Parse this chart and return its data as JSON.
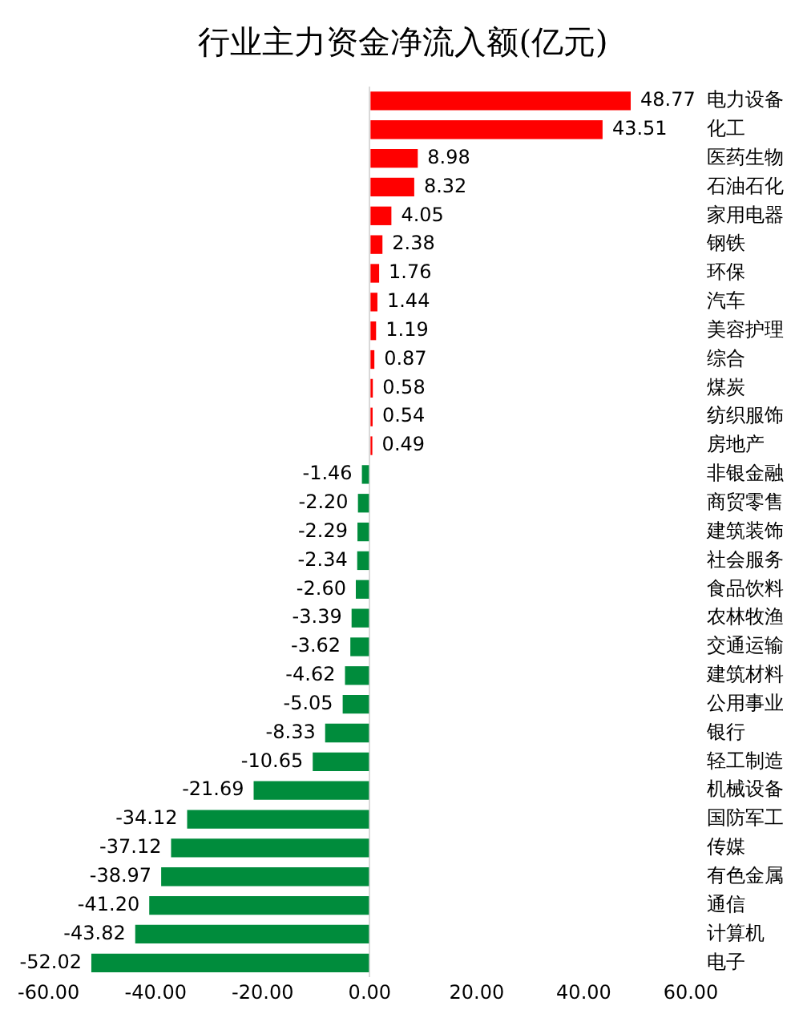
{
  "chart_data": {
    "type": "bar",
    "orientation": "horizontal",
    "title": "行业主力资金净流入额(亿元)",
    "categories": [
      "电力设备",
      "化工",
      "医药生物",
      "石油石化",
      "家用电器",
      "钢铁",
      "环保",
      "汽车",
      "美容护理",
      "综合",
      "煤炭",
      "纺织服饰",
      "房地产",
      "非银金融",
      "商贸零售",
      "建筑装饰",
      "社会服务",
      "食品饮料",
      "农林牧渔",
      "交通运输",
      "建筑材料",
      "公用事业",
      "银行",
      "轻工制造",
      "机械设备",
      "国防军工",
      "传媒",
      "有色金属",
      "通信",
      "计算机",
      "电子"
    ],
    "values": [
      48.77,
      43.51,
      8.98,
      8.32,
      4.05,
      2.38,
      1.76,
      1.44,
      1.19,
      0.87,
      0.58,
      0.54,
      0.49,
      -1.46,
      -2.2,
      -2.29,
      -2.34,
      -2.6,
      -3.39,
      -3.62,
      -4.62,
      -5.05,
      -8.33,
      -10.65,
      -21.69,
      -34.12,
      -37.12,
      -38.97,
      -41.2,
      -43.82,
      -52.02
    ],
    "value_labels": [
      "48.77",
      "43.51",
      "8.98",
      "8.32",
      "4.05",
      "2.38",
      "1.76",
      "1.44",
      "1.19",
      "0.87",
      "0.58",
      "0.54",
      "0.49",
      "-1.46",
      "-2.20",
      "-2.29",
      "-2.34",
      "-2.60",
      "-3.39",
      "-3.62",
      "-4.62",
      "-5.05",
      "-8.33",
      "-10.65",
      "-21.69",
      "-34.12",
      "-37.12",
      "-38.97",
      "-41.20",
      "-43.82",
      "-52.02"
    ],
    "colors": [
      "#ff0000",
      "#ff0000",
      "#ff0000",
      "#ff0000",
      "#ff0000",
      "#ff0000",
      "#ff0000",
      "#ff0000",
      "#ff0000",
      "#ff0000",
      "#ff0000",
      "#ff0000",
      "#ff0000",
      "#008c3c",
      "#008c3c",
      "#008c3c",
      "#008c3c",
      "#008c3c",
      "#008c3c",
      "#008c3c",
      "#008c3c",
      "#008c3c",
      "#008c3c",
      "#008c3c",
      "#008c3c",
      "#008c3c",
      "#008c3c",
      "#008c3c",
      "#008c3c",
      "#008c3c",
      "#008c3c"
    ],
    "xlim": [
      -60,
      60
    ],
    "xticks": [
      {
        "value": -60,
        "label": "-60.00"
      },
      {
        "value": -40,
        "label": "-40.00"
      },
      {
        "value": -20,
        "label": "-20.00"
      },
      {
        "value": 0,
        "label": "0.00"
      },
      {
        "value": 20,
        "label": "20.00"
      },
      {
        "value": 40,
        "label": "40.00"
      },
      {
        "value": 60,
        "label": "60.00"
      }
    ],
    "legend": false
  }
}
